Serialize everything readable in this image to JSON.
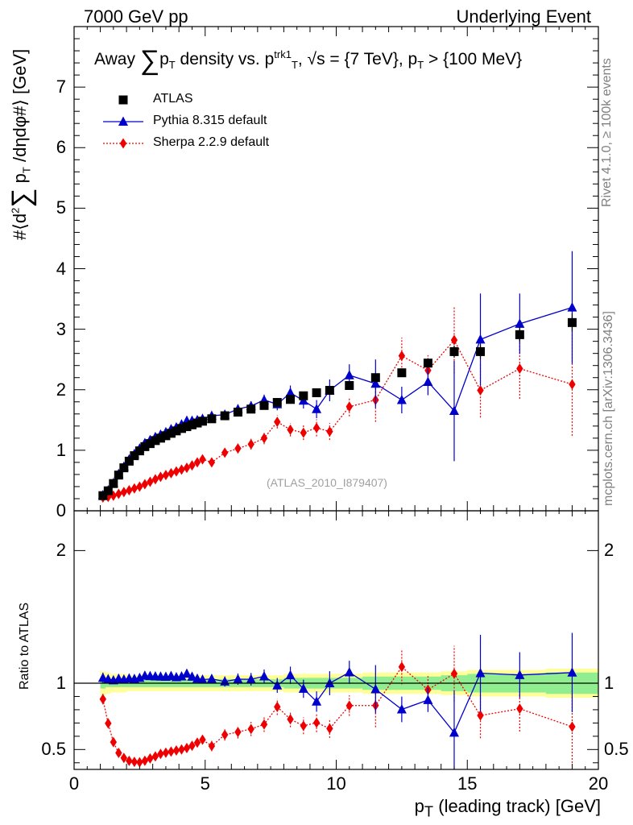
{
  "header": {
    "left": "7000 GeV pp",
    "right": "Underlying Event"
  },
  "side_labels": {
    "rivet": "Rivet 4.1.0, ≥ 100k events",
    "mcplots": "mcplots.cern.ch [arXiv:1306.3436]"
  },
  "title": {
    "prefix": "Away ",
    "sigma": "∑",
    "p": "p",
    "sub_T": "T",
    "mid": " density vs. p",
    "sup_trk1": "trk1",
    "sub_T2": "T",
    "after": ", √s = {7 TeV}, p",
    "sub_T3": "T",
    "end": " > {100 MeV}"
  },
  "ylabel_main": {
    "a": "#⟨d",
    "sup2": "2",
    "sigma": "∑",
    "b": " p",
    "subT": "T",
    "c": " /dηdφ#⟩ [GeV]"
  },
  "ylabel_ratio": "Ratio to ATLAS",
  "xlabel": {
    "p": "p",
    "subT": "T",
    "rest": " (leading track) [GeV]"
  },
  "watermark": "(ATLAS_2010_I879407)",
  "colors": {
    "atlas": "#000000",
    "pythia": "#0000cc",
    "sherpa": "#ee0000",
    "band_inner": "#90ee90",
    "band_outer": "#ffff99"
  },
  "chart_data": {
    "type": "scatter",
    "title": "Away Σ pT density vs. pT trk1, √s = {7 TeV}, pT > {100 MeV}",
    "xlabel": "pT (leading track) [GeV]",
    "ylabel": "#⟨d² Σ pT /dηdφ#⟩ [GeV]",
    "xlim": [
      0,
      20
    ],
    "ylim_main": [
      0,
      8
    ],
    "ylim_ratio": [
      0.35,
      2.3
    ],
    "x_ticks": [
      0,
      5,
      10,
      15,
      20
    ],
    "y_ticks_main": [
      0,
      1,
      2,
      3,
      4,
      5,
      6,
      7
    ],
    "y_ticks_ratio": [
      0.5,
      1,
      2
    ],
    "legend_position": "top-left",
    "x": [
      1.1,
      1.3,
      1.5,
      1.7,
      1.9,
      2.1,
      2.3,
      2.5,
      2.7,
      2.9,
      3.1,
      3.3,
      3.5,
      3.7,
      3.9,
      4.1,
      4.3,
      4.5,
      4.7,
      4.9,
      5.25,
      5.75,
      6.25,
      6.75,
      7.25,
      7.75,
      8.25,
      8.75,
      9.25,
      9.75,
      10.5,
      11.5,
      12.5,
      13.5,
      14.5,
      15.5,
      17.0,
      19.0
    ],
    "series": [
      {
        "name": "ATLAS",
        "marker": "square",
        "values": [
          0.25,
          0.33,
          0.45,
          0.59,
          0.71,
          0.82,
          0.91,
          0.99,
          1.06,
          1.11,
          1.16,
          1.2,
          1.24,
          1.28,
          1.32,
          1.36,
          1.39,
          1.42,
          1.45,
          1.48,
          1.52,
          1.57,
          1.63,
          1.68,
          1.74,
          1.79,
          1.84,
          1.9,
          1.95,
          1.99,
          2.07,
          2.2,
          2.28,
          2.44,
          2.63,
          2.63,
          2.91,
          3.11
        ],
        "errors": [
          0.01,
          0.01,
          0.01,
          0.01,
          0.01,
          0.01,
          0.01,
          0.01,
          0.01,
          0.01,
          0.01,
          0.01,
          0.01,
          0.01,
          0.01,
          0.01,
          0.01,
          0.01,
          0.01,
          0.01,
          0.02,
          0.02,
          0.02,
          0.02,
          0.03,
          0.03,
          0.03,
          0.04,
          0.04,
          0.04,
          0.05,
          0.06,
          0.07,
          0.08,
          0.1,
          0.12,
          0.12,
          0.15
        ]
      },
      {
        "name": "Pythia 8.315 default",
        "marker": "triangle",
        "values": [
          0.26,
          0.34,
          0.46,
          0.61,
          0.73,
          0.85,
          0.94,
          1.03,
          1.12,
          1.17,
          1.22,
          1.26,
          1.3,
          1.35,
          1.38,
          1.43,
          1.49,
          1.49,
          1.5,
          1.52,
          1.57,
          1.59,
          1.68,
          1.73,
          1.83,
          1.76,
          1.95,
          1.82,
          1.68,
          1.99,
          2.24,
          2.1,
          1.83,
          2.13,
          1.65,
          2.83,
          3.09,
          3.36
        ],
        "errors": [
          0.01,
          0.01,
          0.01,
          0.02,
          0.02,
          0.02,
          0.02,
          0.02,
          0.02,
          0.02,
          0.03,
          0.03,
          0.03,
          0.03,
          0.03,
          0.03,
          0.04,
          0.04,
          0.04,
          0.04,
          0.05,
          0.06,
          0.07,
          0.08,
          0.09,
          0.1,
          0.12,
          0.13,
          0.15,
          0.18,
          0.18,
          0.4,
          0.22,
          0.22,
          0.83,
          0.76,
          0.5,
          0.93
        ]
      },
      {
        "name": "Sherpa 2.2.9 default",
        "marker": "diamond",
        "values": [
          0.22,
          0.23,
          0.25,
          0.28,
          0.31,
          0.34,
          0.37,
          0.4,
          0.44,
          0.48,
          0.52,
          0.56,
          0.59,
          0.62,
          0.65,
          0.68,
          0.71,
          0.75,
          0.8,
          0.85,
          0.8,
          0.96,
          1.03,
          1.1,
          1.2,
          1.47,
          1.34,
          1.29,
          1.37,
          1.31,
          1.72,
          1.83,
          2.56,
          2.32,
          2.82,
          1.99,
          2.35,
          2.09
        ],
        "errors": [
          0.01,
          0.01,
          0.01,
          0.01,
          0.01,
          0.02,
          0.02,
          0.02,
          0.02,
          0.02,
          0.02,
          0.03,
          0.03,
          0.03,
          0.03,
          0.04,
          0.04,
          0.04,
          0.05,
          0.05,
          0.06,
          0.07,
          0.08,
          0.09,
          0.1,
          0.11,
          0.11,
          0.12,
          0.14,
          0.14,
          0.16,
          0.36,
          0.3,
          0.25,
          0.55,
          0.45,
          0.5,
          0.85
        ]
      }
    ],
    "ratio_band": {
      "inner_halfwidth": [
        0.04,
        0.03,
        0.03,
        0.03,
        0.03,
        0.03,
        0.03,
        0.03,
        0.03,
        0.03,
        0.03,
        0.03,
        0.03,
        0.03,
        0.03,
        0.03,
        0.03,
        0.03,
        0.03,
        0.03,
        0.03,
        0.03,
        0.03,
        0.03,
        0.03,
        0.03,
        0.04,
        0.04,
        0.04,
        0.04,
        0.04,
        0.05,
        0.05,
        0.05,
        0.06,
        0.07,
        0.07,
        0.08
      ],
      "outer_halfwidth": [
        0.09,
        0.08,
        0.07,
        0.07,
        0.07,
        0.06,
        0.06,
        0.06,
        0.06,
        0.06,
        0.06,
        0.06,
        0.06,
        0.06,
        0.06,
        0.06,
        0.06,
        0.06,
        0.06,
        0.06,
        0.06,
        0.06,
        0.06,
        0.06,
        0.06,
        0.06,
        0.07,
        0.07,
        0.07,
        0.07,
        0.07,
        0.08,
        0.08,
        0.08,
        0.09,
        0.1,
        0.1,
        0.11
      ]
    }
  }
}
